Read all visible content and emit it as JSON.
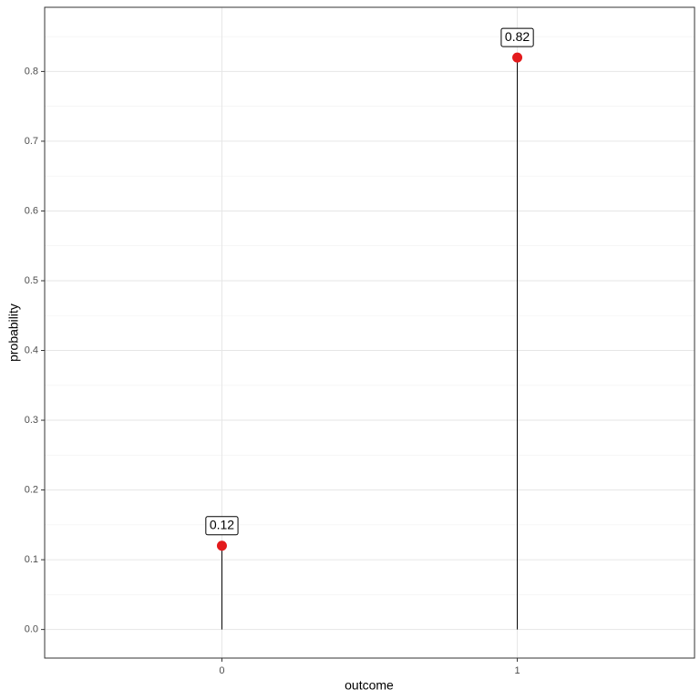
{
  "chart_data": {
    "type": "lollipop",
    "x_label": "outcome",
    "y_label": "probability",
    "x": [
      0,
      1
    ],
    "values": [
      0.12,
      0.82
    ],
    "color": "#e31a1c",
    "xlim": [
      -0.6,
      1.6
    ],
    "xticks": [
      0,
      1
    ],
    "ylim": [
      -0.041,
      0.892
    ],
    "yticks": [
      {
        "value": 0,
        "label": "0.0"
      },
      0.1,
      0.2,
      0.3,
      0.4,
      0.5,
      0.6,
      0.7,
      0.8
    ],
    "grid": true
  }
}
